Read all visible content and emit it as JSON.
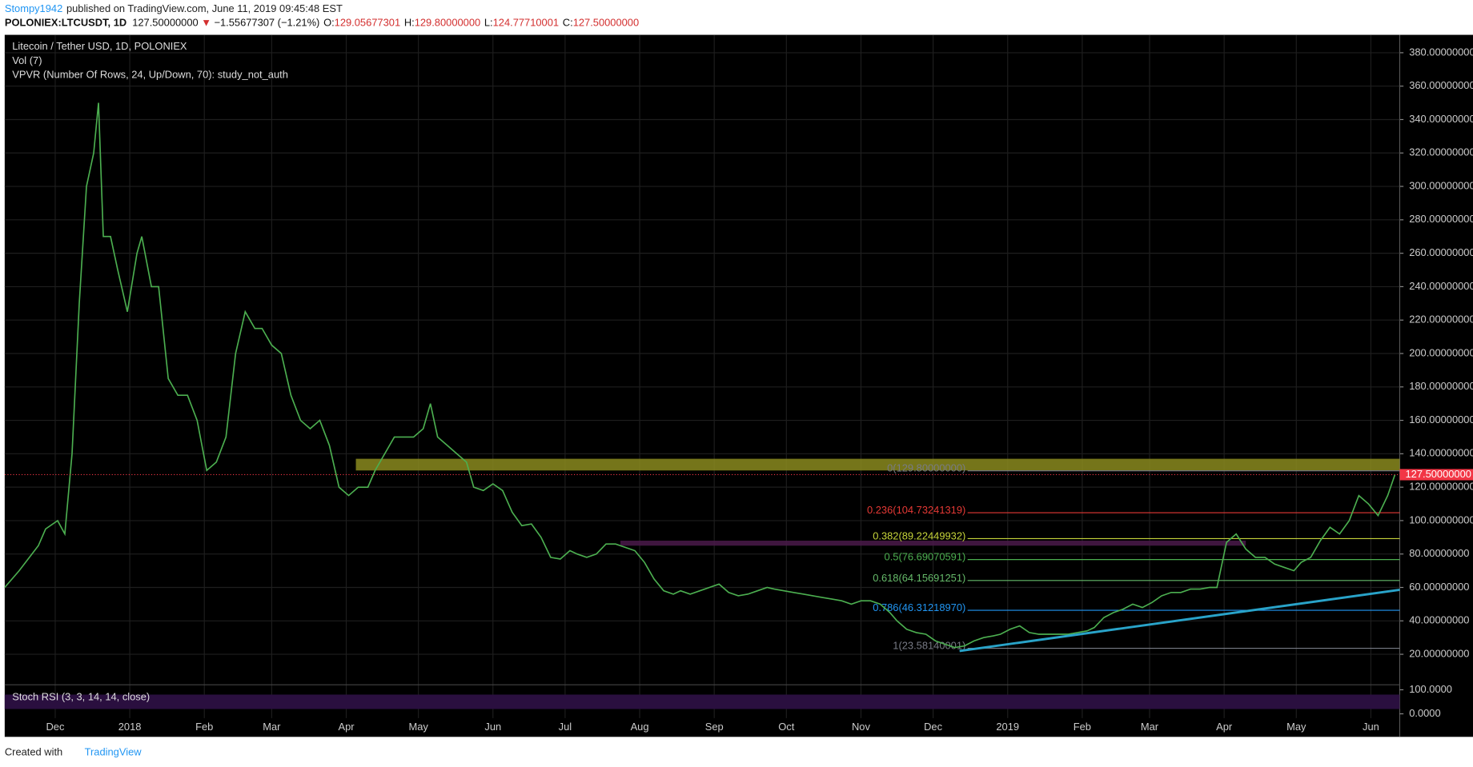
{
  "header": {
    "publisher": "Stompy1942",
    "published": "published on TradingView.com, June 11, 2019 09:45:48 EST",
    "symbol": "POLONIEX:LTCUSDT, 1D",
    "last": "127.50000000",
    "arrow": "▼",
    "change": "−1.55677307 (−1.21%)",
    "ohlc": [
      {
        "label": "O:",
        "value": "129.05677301"
      },
      {
        "label": "H:",
        "value": "129.80000000"
      },
      {
        "label": "L:",
        "value": "124.77710001"
      },
      {
        "label": "C:",
        "value": "127.50000000"
      }
    ]
  },
  "chart_data": {
    "type": "line",
    "title": "Litecoin / Tether USD, 1D, POLONIEX",
    "indicators": [
      "Vol (7)",
      "VPVR (Number Of Rows, 24, Up/Down, 70): study_not_auth"
    ],
    "x": [
      -21,
      -15,
      -7,
      -4,
      1,
      4,
      7,
      10,
      13,
      16,
      18,
      20,
      23,
      26,
      30,
      34,
      36,
      40,
      43,
      47,
      51,
      55,
      59,
      63,
      67,
      71,
      75,
      79,
      83,
      86,
      90,
      94,
      98,
      102,
      106,
      110,
      114,
      118,
      122,
      126,
      130,
      133,
      137,
      141,
      145,
      149,
      153,
      156,
      159,
      163,
      167,
      171,
      174,
      178,
      182,
      186,
      190,
      194,
      198,
      202,
      206,
      210,
      214,
      217,
      221,
      225,
      229,
      233,
      237,
      241,
      245,
      249,
      253,
      257,
      260,
      264,
      268,
      272,
      276,
      280,
      284,
      288,
      292,
      296,
      299,
      303,
      307,
      311,
      315,
      319,
      323,
      327,
      331,
      335,
      339,
      343,
      347,
      350,
      354,
      358,
      362,
      366,
      370,
      374,
      378,
      382,
      386,
      390,
      393,
      397,
      401,
      405,
      409,
      413,
      417,
      421,
      425,
      429,
      432,
      436,
      440,
      444,
      448,
      452,
      456,
      460,
      464,
      468,
      472,
      476,
      480,
      483,
      487,
      491,
      495,
      499,
      503,
      507,
      511,
      515,
      518,
      522,
      526,
      530,
      534,
      538,
      542,
      546,
      550,
      554,
      557
    ],
    "values": [
      60,
      70,
      85,
      95,
      100,
      92,
      140,
      230,
      300,
      320,
      350,
      270,
      270,
      250,
      225,
      260,
      270,
      240,
      240,
      185,
      175,
      175,
      160,
      130,
      135,
      150,
      200,
      225,
      215,
      215,
      205,
      200,
      175,
      160,
      155,
      160,
      145,
      120,
      115,
      120,
      120,
      130,
      140,
      150,
      150,
      150,
      155,
      170,
      150,
      145,
      140,
      135,
      120,
      118,
      122,
      118,
      105,
      97,
      98,
      90,
      78,
      77,
      82,
      80,
      78,
      80,
      86,
      86,
      84,
      82,
      75,
      65,
      58,
      56,
      58,
      56,
      58,
      60,
      62,
      57,
      55,
      56,
      58,
      60,
      59,
      58,
      57,
      56,
      55,
      54,
      53,
      52,
      50,
      52,
      52,
      50,
      45,
      40,
      35,
      33,
      32,
      28,
      26,
      24,
      25,
      28,
      30,
      31,
      32,
      35,
      37,
      33,
      32,
      32,
      32,
      32,
      33,
      34,
      36,
      42,
      45,
      47,
      50,
      48,
      51,
      55,
      57,
      57,
      59,
      59,
      60,
      60,
      87,
      92,
      83,
      78,
      78,
      74,
      72,
      70,
      75,
      78,
      88,
      96,
      92,
      100,
      115,
      110,
      103,
      115,
      127.5
    ],
    "color": "#4caf50",
    "xlim": [
      -21,
      559
    ],
    "ylim": [
      2.6,
      390.7
    ],
    "xticks": [
      {
        "value": 0,
        "label": "Dec"
      },
      {
        "value": 31,
        "label": "2018"
      },
      {
        "value": 62,
        "label": "Feb"
      },
      {
        "value": 90,
        "label": "Mar"
      },
      {
        "value": 121,
        "label": "Apr"
      },
      {
        "value": 151,
        "label": "May"
      },
      {
        "value": 182,
        "label": "Jun"
      },
      {
        "value": 212,
        "label": "Jul"
      },
      {
        "value": 243,
        "label": "Aug"
      },
      {
        "value": 274,
        "label": "Sep"
      },
      {
        "value": 304,
        "label": "Oct"
      },
      {
        "value": 335,
        "label": "Nov"
      },
      {
        "value": 365,
        "label": "Dec"
      },
      {
        "value": 396,
        "label": "2019"
      },
      {
        "value": 427,
        "label": "Feb"
      },
      {
        "value": 455,
        "label": "Mar"
      },
      {
        "value": 486,
        "label": "Apr"
      },
      {
        "value": 516,
        "label": "May"
      },
      {
        "value": 547,
        "label": "Jun"
      }
    ],
    "yticks": [
      {
        "value": 20,
        "label": "20.00000000"
      },
      {
        "value": 40,
        "label": "40.00000000"
      },
      {
        "value": 60,
        "label": "60.00000000"
      },
      {
        "value": 80,
        "label": "80.00000000"
      },
      {
        "value": 100,
        "label": "100.00000000"
      },
      {
        "value": 120,
        "label": "120.00000000"
      },
      {
        "value": 140,
        "label": "140.00000000"
      },
      {
        "value": 160,
        "label": "160.00000000"
      },
      {
        "value": 180,
        "label": "180.00000000"
      },
      {
        "value": 200,
        "label": "200.00000000"
      },
      {
        "value": 220,
        "label": "220.00000000"
      },
      {
        "value": 240,
        "label": "240.00000000"
      },
      {
        "value": 260,
        "label": "260.00000000"
      },
      {
        "value": 280,
        "label": "280.00000000"
      },
      {
        "value": 300,
        "label": "300.00000000"
      },
      {
        "value": 320,
        "label": "320.00000000"
      },
      {
        "value": 340,
        "label": "340.00000000"
      },
      {
        "value": 360,
        "label": "360.00000000"
      },
      {
        "value": 380,
        "label": "380.00000000"
      }
    ],
    "grid": true,
    "last_price": {
      "value": 127.5,
      "label": "127.50000000",
      "color": "#f23645"
    },
    "fib_levels": [
      {
        "value": 129.8,
        "label": "0(129.80000000)",
        "color": "#787b86"
      },
      {
        "value": 104.73241319,
        "label": "0.236(104.73241319)",
        "color": "#e53935"
      },
      {
        "value": 89.22449932,
        "label": "0.382(89.22449932)",
        "color": "#c6d43a"
      },
      {
        "value": 76.69070591,
        "label": "0.5(76.69070591)",
        "color": "#4caf50"
      },
      {
        "value": 64.15691251,
        "label": "0.618(64.15691251)",
        "color": "#66bb6a"
      },
      {
        "value": 46.3121897,
        "label": "0.786(46.31218970)",
        "color": "#2196f3"
      },
      {
        "value": 23.58140001,
        "label": "1(23.58140001)",
        "color": "#787b86"
      }
    ],
    "zones": [
      {
        "values": [
          130,
          137
        ],
        "x": [
          125,
          559
        ],
        "color": "#8a8a1e"
      },
      {
        "values": [
          85,
          88
        ],
        "x": [
          235,
          495
        ],
        "color": "#4a1a4a"
      }
    ],
    "trendline": {
      "x": [
        376,
        559
      ],
      "values": [
        22,
        58.6
      ],
      "color": "#29a3c9"
    },
    "stoch": {
      "title": "Stoch RSI (3, 3, 14, 14, close)",
      "yticks": [
        {
          "value": 100,
          "label": "100.0000"
        },
        {
          "value": 0,
          "label": "0.0000"
        }
      ],
      "ylim": [
        -6,
        115
      ]
    }
  },
  "footer": {
    "created": "Created with",
    "brand": "TradingView"
  }
}
